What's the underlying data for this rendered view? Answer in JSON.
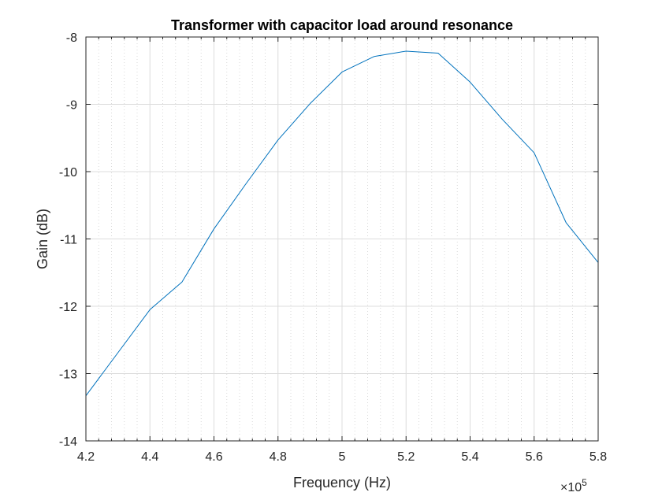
{
  "chart_data": {
    "type": "line",
    "title": "Transformer with capacitor load around resonance",
    "xlabel": "Frequency (Hz)",
    "ylabel": "Gain (dB)",
    "x_exponent_label": "×10",
    "x_exponent_power": "5",
    "x_scale_factor": 100000,
    "xlim": [
      420000,
      580000
    ],
    "ylim": [
      -14,
      -8
    ],
    "x_ticks": [
      420000,
      440000,
      460000,
      480000,
      500000,
      520000,
      540000,
      560000,
      580000
    ],
    "x_tick_labels": [
      "4.2",
      "4.4",
      "4.6",
      "4.8",
      "5",
      "5.2",
      "5.4",
      "5.6",
      "5.8"
    ],
    "y_ticks": [
      -14,
      -13,
      -12,
      -11,
      -10,
      -9,
      -8
    ],
    "y_tick_labels": [
      "-14",
      "-13",
      "-12",
      "-11",
      "-10",
      "-9",
      "-8"
    ],
    "grid": "on",
    "minor_grid": "on",
    "line_color": "#0072bd",
    "series": [
      {
        "x": [
          420000,
          430000,
          440000,
          450000,
          460000,
          470000,
          480000,
          490000,
          500000,
          510000,
          520000,
          530000,
          540000,
          550000,
          560000,
          570000,
          580000
        ],
        "values": [
          -13.33,
          -12.69,
          -12.05,
          -11.64,
          -10.85,
          -10.18,
          -9.53,
          -8.99,
          -8.52,
          -8.29,
          -8.21,
          -8.24,
          -8.67,
          -9.22,
          -9.72,
          -10.76,
          -11.35
        ]
      }
    ]
  }
}
